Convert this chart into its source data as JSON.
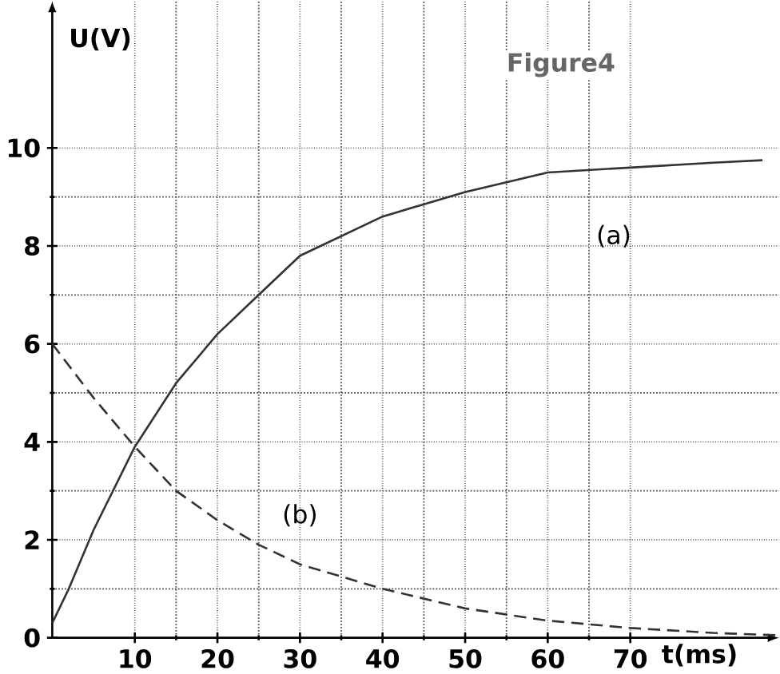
{
  "chart_data": {
    "type": "line",
    "title": "Figure4",
    "xlabel": "t(ms)",
    "ylabel": "U(V)",
    "xlim": [
      0,
      88
    ],
    "ylim": [
      0,
      13
    ],
    "xticks": [
      10,
      20,
      30,
      40,
      50,
      60,
      70
    ],
    "yticks": [
      0,
      2,
      4,
      6,
      8,
      10
    ],
    "grid": true,
    "legend": false,
    "series": [
      {
        "name": "(a)",
        "color": "#333333",
        "line_style": "solid",
        "x": [
          0,
          2,
          5,
          10,
          15,
          20,
          25,
          30,
          40,
          50,
          60,
          70,
          80,
          86
        ],
        "values": [
          0.3,
          1,
          2.2,
          3.9,
          5.2,
          6.2,
          7,
          7.8,
          8.6,
          9.1,
          9.5,
          9.6,
          9.7,
          9.75
        ]
      },
      {
        "name": "(b)",
        "color": "#333333",
        "line_style": "dashed",
        "x": [
          0,
          5,
          10,
          15,
          20,
          25,
          30,
          40,
          50,
          60,
          70,
          80,
          88
        ],
        "values": [
          6,
          4.9,
          3.9,
          3,
          2.4,
          1.9,
          1.5,
          1,
          0.6,
          0.35,
          0.2,
          0.1,
          0.05
        ]
      }
    ]
  }
}
